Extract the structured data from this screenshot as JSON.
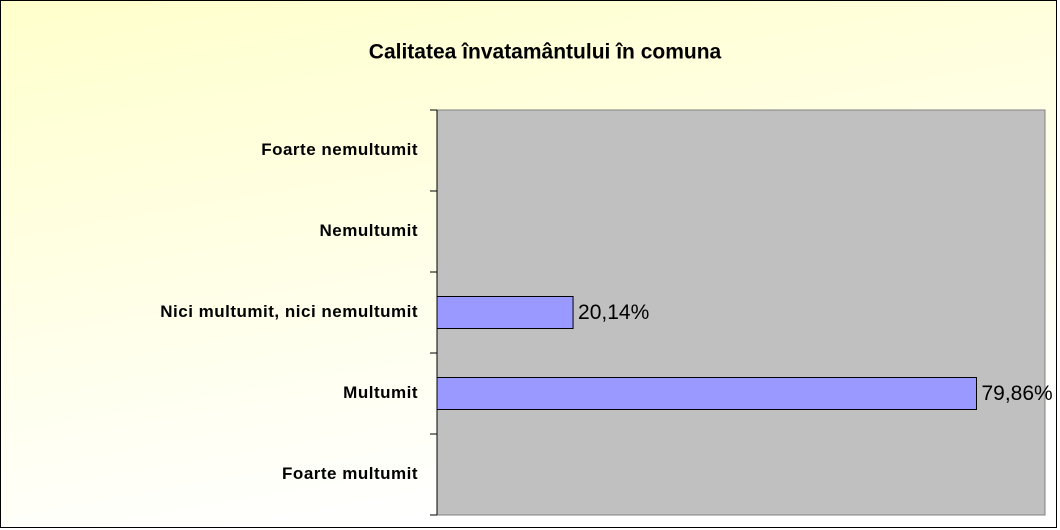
{
  "chart_data": {
    "type": "bar",
    "orientation": "horizontal",
    "title": "Calitatea învatamântului în comuna",
    "categories": [
      "Foarte nemultumit",
      "Nemultumit",
      "Nici multumit, nici nemultumit",
      "Multumit",
      "Foarte multumit"
    ],
    "values": [
      0,
      0,
      20.14,
      79.86,
      0
    ],
    "value_labels": [
      null,
      null,
      "20,14%",
      "79,86%",
      null
    ],
    "color": "#9999ff",
    "xlim": [
      0,
      90
    ]
  }
}
